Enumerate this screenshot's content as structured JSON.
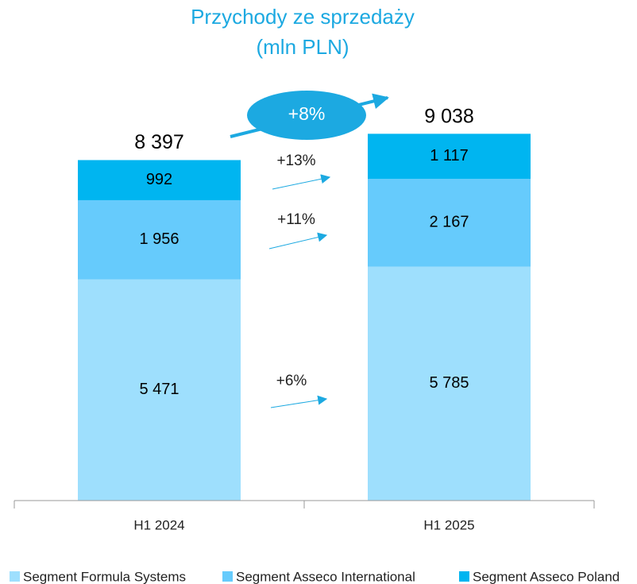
{
  "chart_data": {
    "type": "stacked_bar",
    "title": "Przychody ze sprzedaży",
    "subtitle": "(mln PLN)",
    "categories": [
      "H1 2024",
      "H1 2025"
    ],
    "series": [
      {
        "name": "Segment Formula Systems",
        "color": "#9edffd",
        "values": [
          5471,
          5785
        ],
        "value_labels": [
          "5 471",
          "5 785"
        ]
      },
      {
        "name": "Segment Asseco International",
        "color": "#66cbfc",
        "values": [
          1956,
          2167
        ],
        "value_labels": [
          "1 956",
          "2 167"
        ]
      },
      {
        "name": "Segment Asseco Poland",
        "color": "#00b5f0",
        "values": [
          992,
          1117
        ],
        "value_labels": [
          "992",
          "1 117"
        ]
      }
    ],
    "totals": [
      8397,
      9038
    ],
    "total_labels": [
      "8 397",
      "9 038"
    ],
    "annotations": [
      "+8%",
      "+13%",
      "+11%",
      "+6%"
    ],
    "ylim": [
      0,
      10000
    ],
    "legend": "bottom"
  }
}
